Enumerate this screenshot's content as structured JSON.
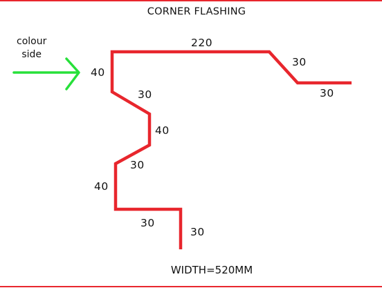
{
  "diagram": {
    "title": "CORNER FLASHING",
    "width_note": "WIDTH=520MM",
    "colour_side": {
      "line1": "colour",
      "line2": "side"
    },
    "dimensions": {
      "top_flange": "220",
      "left_upstand": "40",
      "top_right_diag": "30",
      "top_right_flange": "30",
      "step1_diag": "30",
      "step1_vertical": "40",
      "step2_diag": "30",
      "lower_vertical": "40",
      "bottom_flange": "30",
      "bottom_return": "30"
    },
    "colors": {
      "profile": "#e8262d",
      "arrow": "#27e03a",
      "frame": "#e8262d"
    }
  }
}
